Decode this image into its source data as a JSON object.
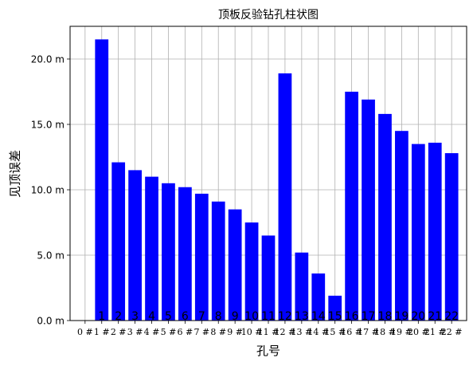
{
  "chart_data": {
    "type": "bar",
    "title": "顶板反验钻孔柱状图",
    "xlabel": "孔号",
    "ylabel": "见顶误差",
    "ylim": [
      0,
      22.5
    ],
    "xlim": [
      -0.9,
      22.9
    ],
    "grid": true,
    "bar_color": "#0000ff",
    "x": [
      1,
      2,
      3,
      4,
      5,
      6,
      7,
      8,
      9,
      10,
      11,
      12,
      13,
      14,
      15,
      16,
      17,
      18,
      19,
      20,
      21,
      22
    ],
    "values": [
      21.5,
      12.1,
      11.5,
      11.0,
      10.5,
      10.2,
      9.7,
      9.1,
      8.5,
      7.5,
      6.5,
      18.9,
      5.2,
      3.6,
      1.9,
      17.5,
      16.9,
      15.8,
      14.5,
      13.5,
      13.6,
      12.8
    ],
    "bar_labels": [
      "1",
      "2",
      "3",
      "4",
      "5",
      "6",
      "7",
      "8",
      "9",
      "10",
      "11",
      "12",
      "13",
      "14",
      "15",
      "16",
      "17",
      "18",
      "19",
      "20",
      "21",
      "22"
    ],
    "x_ticks": [
      0,
      1,
      2,
      3,
      4,
      5,
      6,
      7,
      8,
      9,
      10,
      11,
      12,
      13,
      14,
      15,
      16,
      17,
      18,
      19,
      20,
      21,
      22
    ],
    "x_tick_labels": [
      "0 #",
      "1 #",
      "2 #",
      "3 #",
      "4 #",
      "5 #",
      "6 #",
      "7 #",
      "8 #",
      "9 #",
      "10 #",
      "11 #",
      "12 #",
      "13 #",
      "14 #",
      "15 #",
      "16 #",
      "17 #",
      "18 #",
      "19 #",
      "20 #",
      "21 #",
      "22 #"
    ],
    "y_ticks": [
      0,
      5,
      10,
      15,
      20
    ],
    "y_tick_labels": [
      "0.0 m",
      "5.0 m",
      "10.0 m",
      "15.0 m",
      "20.0 m"
    ]
  }
}
